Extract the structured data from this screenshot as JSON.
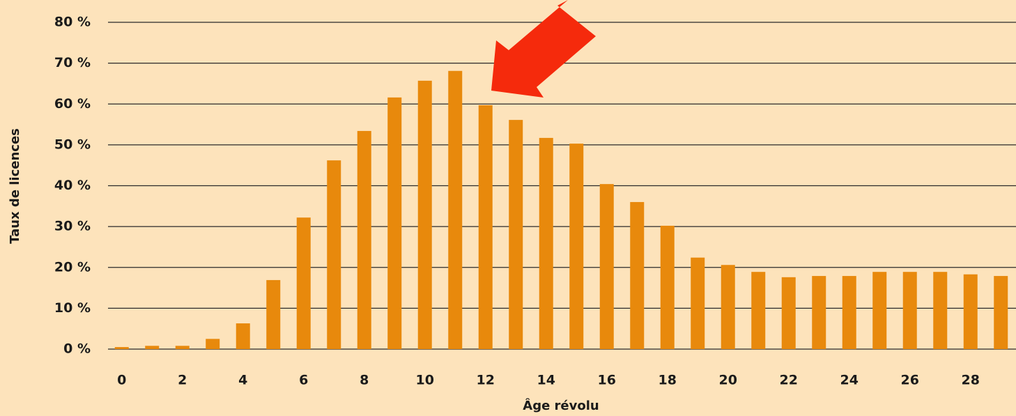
{
  "chart_data": {
    "type": "bar",
    "x_label": "Âge révolu",
    "y_label": "Taux de licences",
    "categories": [
      "0",
      null,
      "2",
      null,
      "4",
      null,
      "6",
      null,
      "8",
      null,
      "10",
      null,
      "12",
      null,
      "14",
      null,
      "16",
      null,
      "18",
      null,
      "20",
      null,
      "22",
      null,
      "24",
      null,
      "26",
      null,
      "28",
      null
    ],
    "values": [
      0.5,
      0.8,
      0.8,
      2.5,
      6.3,
      16.9,
      32.2,
      46.2,
      53.4,
      61.6,
      65.7,
      68.1,
      59.7,
      56.1,
      51.7,
      50.3,
      40.4,
      36.0,
      30.2,
      22.4,
      20.6,
      18.9,
      17.6,
      17.9,
      17.9,
      18.9,
      18.9,
      18.9,
      18.3,
      17.9
    ],
    "color": "#e8890c",
    "ylim": [
      0,
      80
    ],
    "yticks": [
      {
        "value": 0,
        "label": "0 %"
      },
      {
        "value": 10,
        "label": "10 %"
      },
      {
        "value": 20,
        "label": "20 %"
      },
      {
        "value": 30,
        "label": "30 %"
      },
      {
        "value": 40,
        "label": "40 %"
      },
      {
        "value": 50,
        "label": "50 %"
      },
      {
        "value": 60,
        "label": "60 %"
      },
      {
        "value": 70,
        "label": "70 %"
      },
      {
        "value": 80,
        "label": "80 %"
      }
    ],
    "grid": true
  }
}
